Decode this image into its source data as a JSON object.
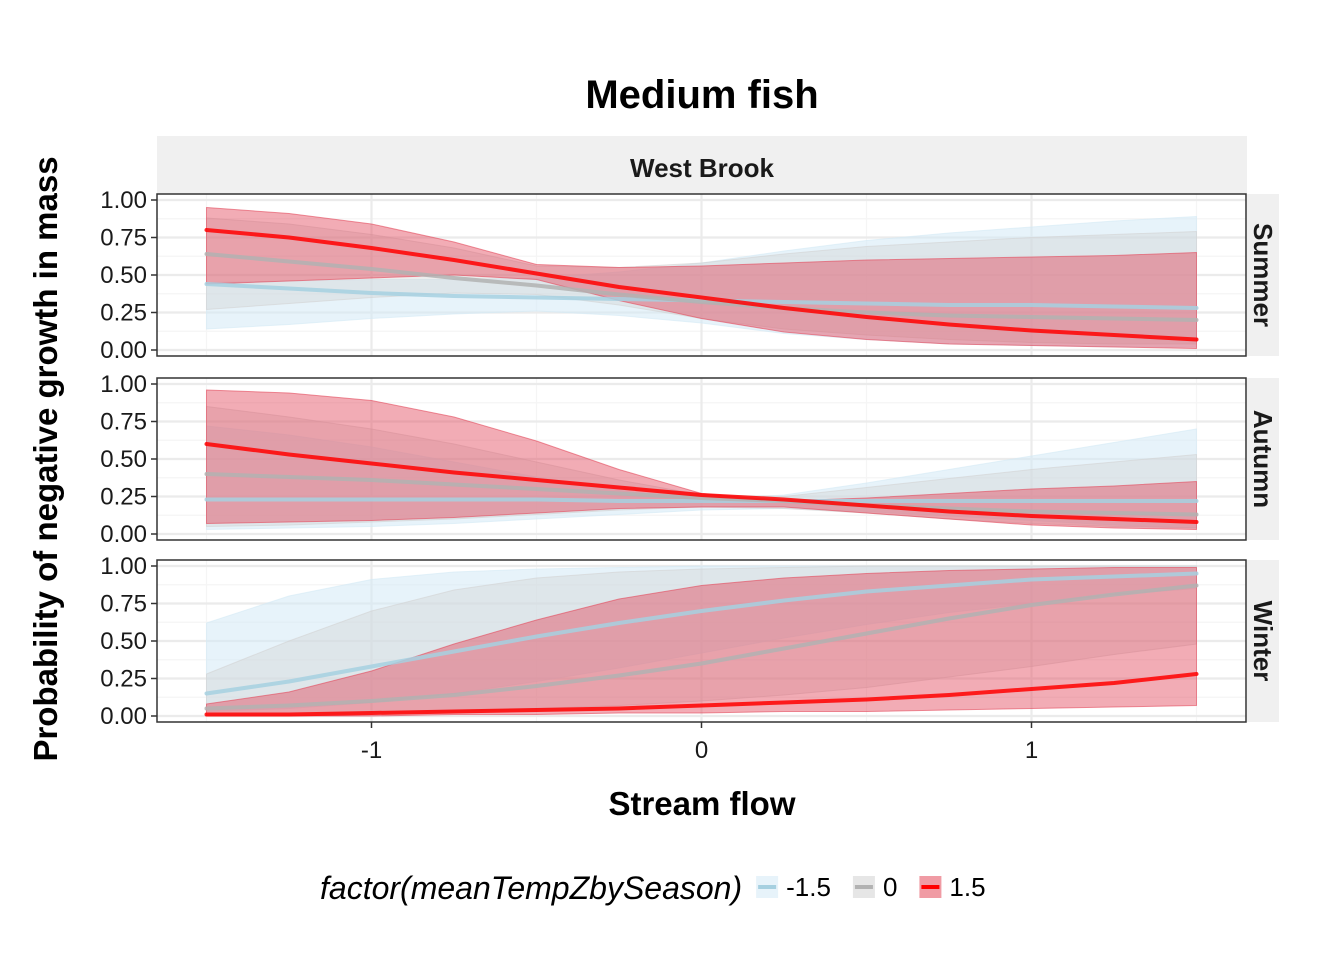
{
  "chart_data": {
    "type": "area",
    "title": "Medium fish",
    "xlabel": "Stream flow",
    "ylabel": "Probability of negative growth in mass",
    "facet_column_label": "West Brook",
    "xlim": [
      -1.65,
      1.65
    ],
    "ylim": [
      -0.04,
      1.04
    ],
    "x_ticks": [
      -1,
      0,
      1
    ],
    "x_tick_labels": [
      "-1",
      "0",
      "1"
    ],
    "y_ticks": [
      0,
      0.25,
      0.5,
      0.75,
      1
    ],
    "y_tick_labels": [
      "0.00",
      "0.25",
      "0.50",
      "0.75",
      "1.00"
    ],
    "grid": true,
    "legend": {
      "title": "factor(meanTempZbySeason)",
      "position": "bottom",
      "entries": [
        {
          "label": "-1.5",
          "line_color": "#a6d0e0",
          "fill_color": "#d4e9f5"
        },
        {
          "label": "0",
          "line_color": "#b2b2b2",
          "fill_color": "#d2d2d2"
        },
        {
          "label": "1.5",
          "line_color": "#ff0000",
          "fill_color": "#e3485a"
        }
      ]
    },
    "x": [
      -1.5,
      -1.25,
      -1.0,
      -0.75,
      -0.5,
      -0.25,
      0.0,
      0.25,
      0.5,
      0.75,
      1.0,
      1.25,
      1.5
    ],
    "panels": [
      {
        "label": "Summer",
        "series": [
          {
            "name": "-1.5",
            "mean": [
              0.44,
              0.41,
              0.38,
              0.36,
              0.35,
              0.34,
              0.33,
              0.32,
              0.31,
              0.3,
              0.3,
              0.29,
              0.28
            ],
            "lower": [
              0.14,
              0.17,
              0.21,
              0.24,
              0.26,
              0.23,
              0.18,
              0.11,
              0.07,
              0.04,
              0.03,
              0.02,
              0.02
            ],
            "upper": [
              0.45,
              0.46,
              0.47,
              0.47,
              0.48,
              0.52,
              0.58,
              0.66,
              0.73,
              0.78,
              0.82,
              0.86,
              0.89
            ]
          },
          {
            "name": "0",
            "mean": [
              0.64,
              0.59,
              0.54,
              0.48,
              0.43,
              0.37,
              0.32,
              0.28,
              0.25,
              0.23,
              0.22,
              0.21,
              0.2
            ],
            "lower": [
              0.27,
              0.31,
              0.35,
              0.38,
              0.37,
              0.3,
              0.21,
              0.14,
              0.1,
              0.07,
              0.05,
              0.04,
              0.04
            ],
            "upper": [
              0.88,
              0.84,
              0.77,
              0.68,
              0.56,
              0.55,
              0.58,
              0.64,
              0.69,
              0.72,
              0.75,
              0.77,
              0.79
            ]
          },
          {
            "name": "1.5",
            "mean": [
              0.8,
              0.75,
              0.68,
              0.6,
              0.51,
              0.42,
              0.35,
              0.28,
              0.22,
              0.17,
              0.13,
              0.1,
              0.07
            ],
            "lower": [
              0.44,
              0.46,
              0.48,
              0.5,
              0.47,
              0.33,
              0.21,
              0.12,
              0.07,
              0.04,
              0.03,
              0.02,
              0.01
            ],
            "upper": [
              0.95,
              0.91,
              0.84,
              0.72,
              0.57,
              0.55,
              0.56,
              0.58,
              0.6,
              0.61,
              0.62,
              0.63,
              0.65
            ]
          }
        ]
      },
      {
        "label": "Autumn",
        "series": [
          {
            "name": "-1.5",
            "mean": [
              0.23,
              0.23,
              0.23,
              0.23,
              0.23,
              0.22,
              0.22,
              0.22,
              0.22,
              0.22,
              0.22,
              0.22,
              0.22
            ],
            "lower": [
              0.03,
              0.04,
              0.05,
              0.07,
              0.1,
              0.13,
              0.16,
              0.17,
              0.15,
              0.12,
              0.09,
              0.06,
              0.04
            ],
            "upper": [
              0.72,
              0.66,
              0.58,
              0.48,
              0.38,
              0.29,
              0.23,
              0.26,
              0.34,
              0.43,
              0.52,
              0.61,
              0.7
            ]
          },
          {
            "name": "0",
            "mean": [
              0.4,
              0.38,
              0.36,
              0.33,
              0.3,
              0.27,
              0.24,
              0.22,
              0.19,
              0.17,
              0.15,
              0.14,
              0.13
            ],
            "lower": [
              0.05,
              0.06,
              0.08,
              0.1,
              0.13,
              0.16,
              0.18,
              0.17,
              0.14,
              0.1,
              0.07,
              0.05,
              0.04
            ],
            "upper": [
              0.85,
              0.78,
              0.7,
              0.6,
              0.48,
              0.36,
              0.26,
              0.25,
              0.31,
              0.37,
              0.43,
              0.48,
              0.53
            ]
          },
          {
            "name": "1.5",
            "mean": [
              0.6,
              0.53,
              0.47,
              0.41,
              0.36,
              0.31,
              0.26,
              0.23,
              0.19,
              0.15,
              0.12,
              0.1,
              0.08
            ],
            "lower": [
              0.07,
              0.08,
              0.09,
              0.11,
              0.14,
              0.17,
              0.18,
              0.18,
              0.14,
              0.1,
              0.06,
              0.04,
              0.03
            ],
            "upper": [
              0.96,
              0.94,
              0.89,
              0.78,
              0.62,
              0.43,
              0.27,
              0.22,
              0.24,
              0.27,
              0.3,
              0.32,
              0.35
            ]
          }
        ]
      },
      {
        "label": "Winter",
        "series": [
          {
            "name": "-1.5",
            "mean": [
              0.15,
              0.23,
              0.33,
              0.43,
              0.53,
              0.62,
              0.7,
              0.77,
              0.83,
              0.87,
              0.91,
              0.93,
              0.95
            ],
            "lower": [
              0.03,
              0.05,
              0.09,
              0.15,
              0.23,
              0.32,
              0.42,
              0.52,
              0.61,
              0.69,
              0.75,
              0.81,
              0.85
            ],
            "upper": [
              0.62,
              0.8,
              0.91,
              0.96,
              0.98,
              0.99,
              1.0,
              1.0,
              1.0,
              1.0,
              1.0,
              1.0,
              1.0
            ]
          },
          {
            "name": "0",
            "mean": [
              0.05,
              0.07,
              0.1,
              0.14,
              0.2,
              0.27,
              0.35,
              0.45,
              0.55,
              0.65,
              0.74,
              0.81,
              0.87
            ],
            "lower": [
              0.01,
              0.01,
              0.02,
              0.03,
              0.05,
              0.07,
              0.1,
              0.14,
              0.19,
              0.26,
              0.33,
              0.41,
              0.48
            ],
            "upper": [
              0.28,
              0.5,
              0.7,
              0.84,
              0.92,
              0.96,
              0.98,
              0.99,
              1.0,
              1.0,
              1.0,
              1.0,
              1.0
            ]
          },
          {
            "name": "1.5",
            "mean": [
              0.01,
              0.01,
              0.02,
              0.03,
              0.04,
              0.05,
              0.07,
              0.09,
              0.11,
              0.14,
              0.18,
              0.22,
              0.28
            ],
            "lower": [
              0.0,
              0.0,
              0.0,
              0.01,
              0.01,
              0.02,
              0.02,
              0.03,
              0.03,
              0.04,
              0.05,
              0.06,
              0.07
            ],
            "upper": [
              0.08,
              0.16,
              0.3,
              0.48,
              0.64,
              0.78,
              0.87,
              0.92,
              0.95,
              0.97,
              0.98,
              0.99,
              0.99
            ]
          }
        ]
      }
    ]
  }
}
